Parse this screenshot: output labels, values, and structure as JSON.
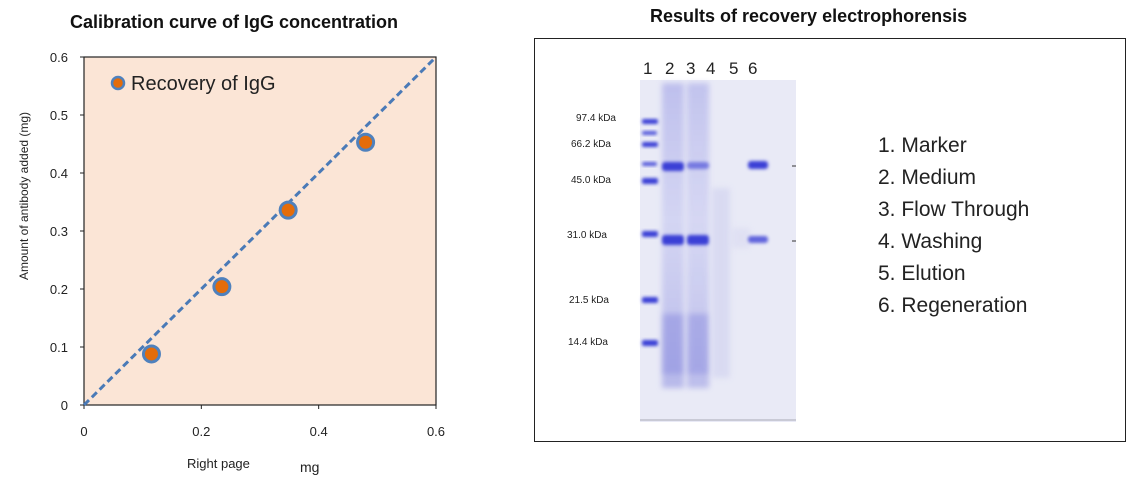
{
  "left_panel": {
    "title": "Calibration curve of IgG concentration",
    "extra_label": "Right page",
    "legend_label": "Recovery of IgG"
  },
  "right_panel": {
    "title": "Results of recovery electrophorensis",
    "lane_numbers": [
      "1",
      "2",
      "3",
      "4",
      "5",
      "6"
    ],
    "marker_labels": [
      "97.4 kDa",
      "66.2 kDa",
      "45.0 kDa",
      "31.0 kDa",
      "21.5 kDa",
      "14.4 kDa"
    ],
    "lane_legend": [
      "1. Marker",
      "2. Medium",
      "3. Flow Through",
      "4. Washing",
      "5. Elution",
      "6. Regeneration"
    ]
  },
  "colors": {
    "plot_background": "#fbe5d6",
    "point_fill": "#e46c0a",
    "point_stroke": "#4f81bd",
    "trend_line": "#4a7ab7",
    "gel_band": "#3b3fd6"
  },
  "chart_data": {
    "type": "scatter",
    "title": "Calibration curve of IgG concentration",
    "xlabel": "mg",
    "ylabel": "Amount of antibody added (mg)",
    "xlim": [
      0,
      0.6
    ],
    "ylim": [
      0,
      0.6
    ],
    "xticks": [
      "0",
      "0.2",
      "0.4",
      "0.6"
    ],
    "yticks": [
      "0",
      "0.1",
      "0.2",
      "0.3",
      "0.4",
      "0.5",
      "0.6"
    ],
    "series": [
      {
        "name": "Recovery of IgG",
        "points": [
          {
            "x": 0.115,
            "y": 0.088
          },
          {
            "x": 0.235,
            "y": 0.204
          },
          {
            "x": 0.348,
            "y": 0.336
          },
          {
            "x": 0.48,
            "y": 0.453
          }
        ]
      }
    ],
    "trendline": {
      "x": [
        0,
        0.6
      ],
      "y": [
        0,
        0.6
      ]
    },
    "grid": false,
    "legend": "top-left"
  }
}
